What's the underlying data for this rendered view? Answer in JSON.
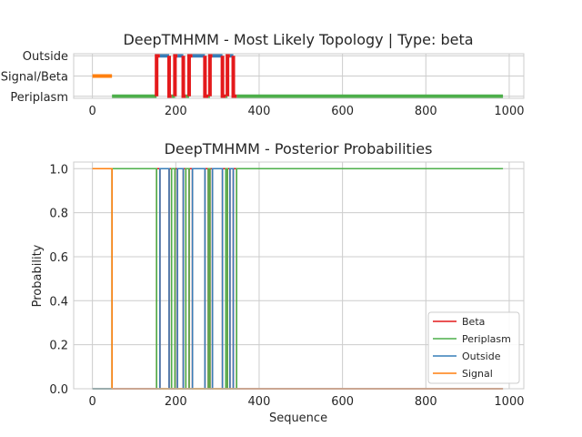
{
  "chart_data": [
    {
      "type": "line",
      "title": "DeepTMHMM - Most Likely Topology | Type: beta",
      "xlim": [
        -45,
        1035
      ],
      "xticks": [
        0,
        200,
        400,
        600,
        800,
        1000
      ],
      "ylim": [
        -0.1,
        2.1
      ],
      "yticks": [
        {
          "value": 0,
          "label": "Periplasm"
        },
        {
          "value": 1,
          "label": "Signal/Beta"
        },
        {
          "value": 2,
          "label": "Outside"
        }
      ],
      "grid": true,
      "segments": [
        {
          "state": "Signal",
          "level": 1,
          "start": 0,
          "end": 47,
          "color": "#ff7f0e"
        },
        {
          "state": "Periplasm",
          "level": 0,
          "start": 47,
          "end": 154,
          "color": "#4daf4a"
        },
        {
          "state": "Beta",
          "level": 1,
          "start": 154,
          "end": 162,
          "color": "#e41a1c"
        },
        {
          "state": "Outside",
          "level": 2,
          "start": 162,
          "end": 184,
          "color": "#377eb8"
        },
        {
          "state": "Beta",
          "level": 1,
          "start": 184,
          "end": 190,
          "color": "#e41a1c"
        },
        {
          "state": "Periplasm",
          "level": 0,
          "start": 190,
          "end": 198,
          "color": "#4daf4a"
        },
        {
          "state": "Beta",
          "level": 1,
          "start": 198,
          "end": 204,
          "color": "#e41a1c"
        },
        {
          "state": "Outside",
          "level": 2,
          "start": 204,
          "end": 218,
          "color": "#377eb8"
        },
        {
          "state": "Beta",
          "level": 1,
          "start": 218,
          "end": 224,
          "color": "#e41a1c"
        },
        {
          "state": "Periplasm",
          "level": 0,
          "start": 224,
          "end": 232,
          "color": "#4daf4a"
        },
        {
          "state": "Beta",
          "level": 1,
          "start": 232,
          "end": 240,
          "color": "#e41a1c"
        },
        {
          "state": "Outside",
          "level": 2,
          "start": 240,
          "end": 270,
          "color": "#377eb8"
        },
        {
          "state": "Beta",
          "level": 1,
          "start": 270,
          "end": 278,
          "color": "#e41a1c"
        },
        {
          "state": "Periplasm",
          "level": 0,
          "start": 278,
          "end": 282,
          "color": "#4daf4a"
        },
        {
          "state": "Beta",
          "level": 1,
          "start": 282,
          "end": 288,
          "color": "#e41a1c"
        },
        {
          "state": "Outside",
          "level": 2,
          "start": 288,
          "end": 312,
          "color": "#377eb8"
        },
        {
          "state": "Beta",
          "level": 1,
          "start": 312,
          "end": 320,
          "color": "#e41a1c"
        },
        {
          "state": "Periplasm",
          "level": 0,
          "start": 320,
          "end": 324,
          "color": "#4daf4a"
        },
        {
          "state": "Beta",
          "level": 1,
          "start": 324,
          "end": 330,
          "color": "#e41a1c"
        },
        {
          "state": "Outside",
          "level": 2,
          "start": 330,
          "end": 338,
          "color": "#377eb8"
        },
        {
          "state": "Beta",
          "level": 1,
          "start": 338,
          "end": 346,
          "color": "#e41a1c"
        },
        {
          "state": "Periplasm",
          "level": 0,
          "start": 346,
          "end": 985,
          "color": "#4daf4a"
        }
      ]
    },
    {
      "type": "line",
      "title": "DeepTMHMM - Posterior Probabilities",
      "xlabel": "Sequence",
      "ylabel": "Probability",
      "xlim": [
        -45,
        1035
      ],
      "ylim": [
        0,
        1.03
      ],
      "xticks": [
        0,
        200,
        400,
        600,
        800,
        1000
      ],
      "yticks": [
        0.0,
        0.2,
        0.4,
        0.6,
        0.8,
        1.0
      ],
      "grid": true,
      "legend_position": "lower-right",
      "series_length": 985,
      "series": [
        {
          "name": "Beta",
          "color": "#e41a1c"
        },
        {
          "name": "Periplasm",
          "color": "#4daf4a"
        },
        {
          "name": "Outside",
          "color": "#377eb8"
        },
        {
          "name": "Signal",
          "color": "#ff7f0e"
        }
      ]
    }
  ]
}
